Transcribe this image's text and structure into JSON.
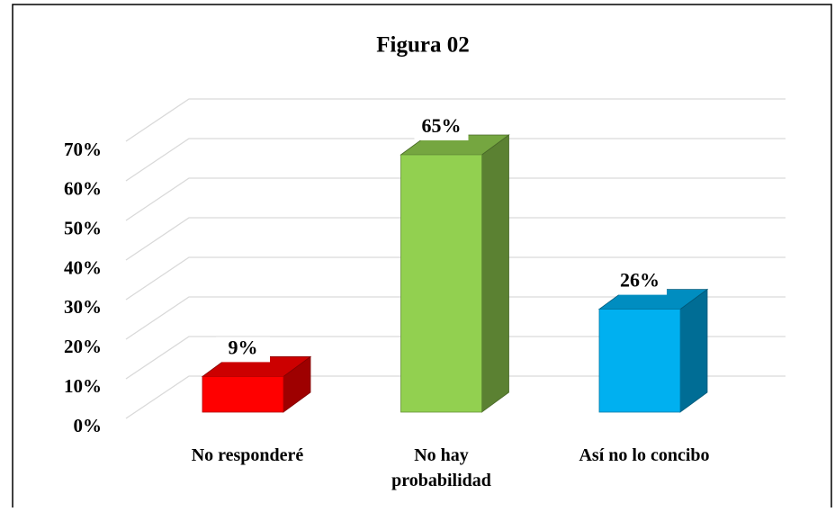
{
  "chart_data": {
    "type": "bar3d",
    "title": "Figura 02",
    "categories": [
      "No responderé",
      "No hay probabilidad",
      "Así no lo concibo"
    ],
    "values": [
      9,
      65,
      26
    ],
    "value_labels": [
      "9%",
      "65%",
      "26%"
    ],
    "colors": [
      "#ff0000",
      "#92d050",
      "#00b0f0"
    ],
    "ylim": [
      0,
      70
    ],
    "yticks": [
      {
        "value": 0,
        "label": "0%"
      },
      {
        "value": 10,
        "label": "10%"
      },
      {
        "value": 20,
        "label": "20%"
      },
      {
        "value": 30,
        "label": "30%"
      },
      {
        "value": 40,
        "label": "40%"
      },
      {
        "value": 50,
        "label": "50%"
      },
      {
        "value": 60,
        "label": "60%"
      },
      {
        "value": 70,
        "label": "70%"
      }
    ],
    "grid": true
  }
}
